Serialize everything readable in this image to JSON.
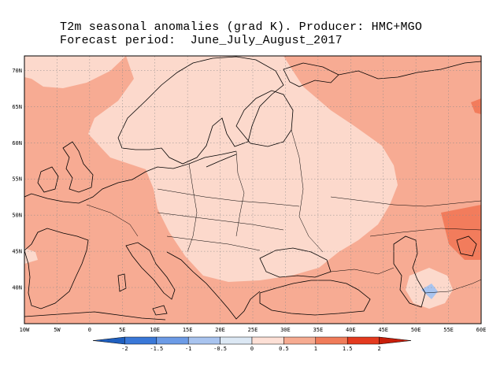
{
  "title": {
    "line1": "T2m seasonal anomalies (grad K). Producer: HMC+MGO",
    "line2": "Forecast period:  June_July_August_2017"
  },
  "map": {
    "lat_labels": [
      "70N",
      "65N",
      "60N",
      "55N",
      "50N",
      "45N",
      "40N"
    ],
    "lon_labels": [
      "10W",
      "5W",
      "0",
      "5E",
      "10E",
      "15E",
      "20E",
      "25E",
      "30E",
      "35E",
      "40E",
      "45E",
      "50E",
      "55E",
      "60E"
    ],
    "lat_range": [
      35,
      72
    ],
    "lon_range": [
      -10,
      60
    ]
  },
  "colorbar": {
    "labels": [
      "-2",
      "-1.5",
      "-1",
      "-0.5",
      "0",
      "0.5",
      "1",
      "1.5",
      "2"
    ],
    "colors": [
      "#1f5fbf",
      "#3a78d8",
      "#6c9be6",
      "#a9c4ef",
      "#dce8f4",
      "#fde0d6",
      "#f6ab91",
      "#f07c5a",
      "#e43a1f",
      "#c81e0a"
    ]
  },
  "palette": {
    "anomaly_0_0_5": "#fcd9cc",
    "anomaly_0_5_1": "#f7ab93",
    "anomaly_1_1_5": "#f27c5c",
    "anomaly_neg_0_5_0": "#a9c4ef"
  }
}
